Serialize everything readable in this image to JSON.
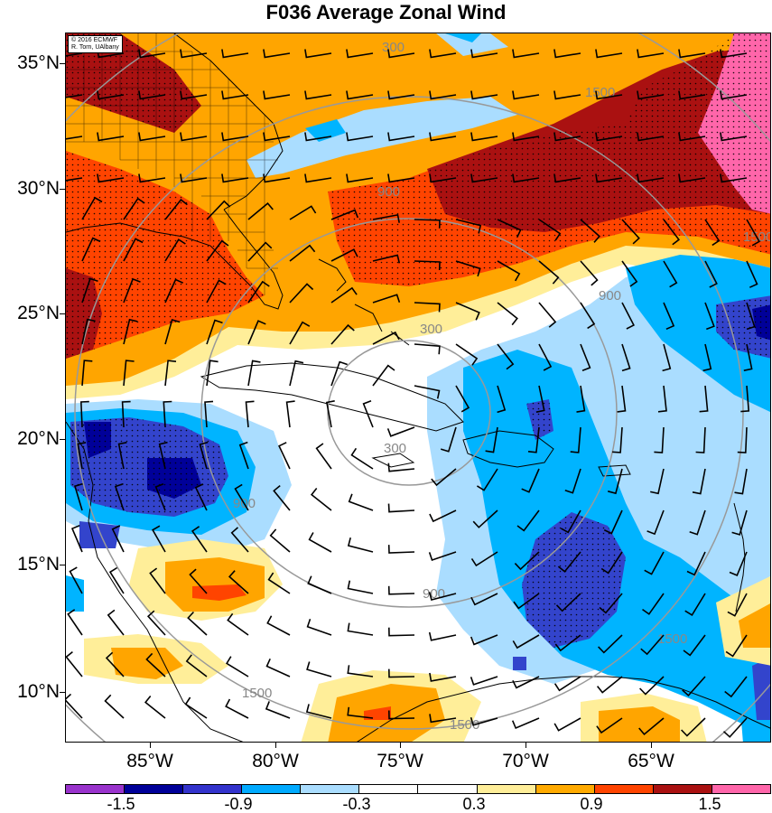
{
  "title": "F036 Average Zonal Wind",
  "credit": {
    "line1": "© 2016 ECMWF",
    "line2": "R. Torn, UAlbany"
  },
  "latitude_labels": [
    "35°N",
    "30°N",
    "25°N",
    "20°N",
    "15°N",
    "10°N"
  ],
  "longitude_labels": [
    "85°W",
    "80°W",
    "75°W",
    "70°W",
    "65°W"
  ],
  "range_ring_labels": [
    "300",
    "300",
    "900",
    "900",
    "900",
    "900",
    "1500",
    "1500",
    "1500",
    "1500",
    "1500",
    "300"
  ],
  "colorbar": {
    "colors": [
      "#9933cc",
      "#000099",
      "#3333cc",
      "#00aaff",
      "#aaddff",
      "#ffffff",
      "#ffffff",
      "#ffee99",
      "#ffaa00",
      "#ff4400",
      "#aa1111",
      "#ff66aa"
    ],
    "labels": [
      "-1.5",
      "-0.9",
      "-0.3",
      "0.3",
      "0.9",
      "1.5"
    ]
  },
  "palette": {
    "light_blue": "#aaddff",
    "cyan": "#00b4ff",
    "blue": "#3344cc",
    "navy": "#000099",
    "yellow": "#ffee99",
    "orange": "#ffa500",
    "red": "#ff4400",
    "dark_red": "#aa1111",
    "pink": "#ff66aa"
  }
}
